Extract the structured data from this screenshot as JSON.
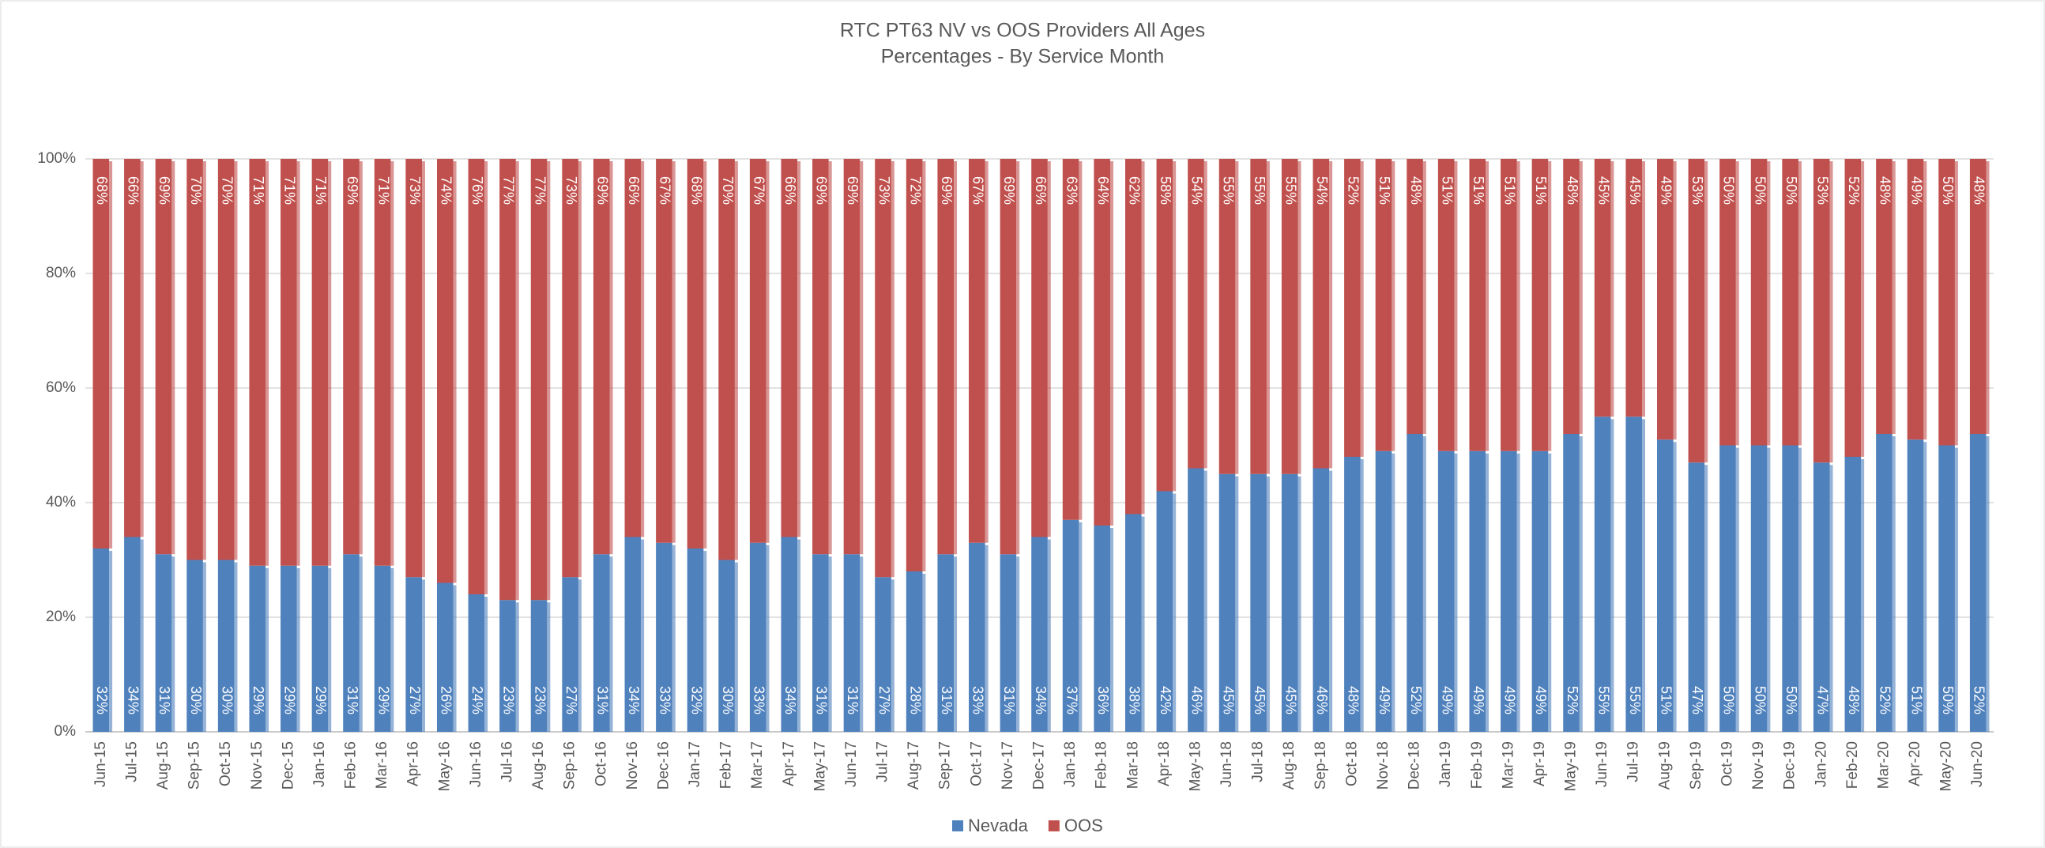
{
  "chart_data": {
    "type": "bar",
    "stacked": true,
    "title": "RTC PT63 NV vs OOS Providers All Ages",
    "subtitle": "Percentages - By Service Month",
    "categories": [
      "Jun-15",
      "Jul-15",
      "Aug-15",
      "Sep-15",
      "Oct-15",
      "Nov-15",
      "Dec-15",
      "Jan-16",
      "Feb-16",
      "Mar-16",
      "Apr-16",
      "May-16",
      "Jun-16",
      "Jul-16",
      "Aug-16",
      "Sep-16",
      "Oct-16",
      "Nov-16",
      "Dec-16",
      "Jan-17",
      "Feb-17",
      "Mar-17",
      "Apr-17",
      "May-17",
      "Jun-17",
      "Jul-17",
      "Aug-17",
      "Sep-17",
      "Oct-17",
      "Nov-17",
      "Dec-17",
      "Jan-18",
      "Feb-18",
      "Mar-18",
      "Apr-18",
      "May-18",
      "Jun-18",
      "Jul-18",
      "Aug-18",
      "Sep-18",
      "Oct-18",
      "Nov-18",
      "Dec-18",
      "Jan-19",
      "Feb-19",
      "Mar-19",
      "Apr-19",
      "May-19",
      "Jun-19",
      "Jul-19",
      "Aug-19",
      "Sep-19",
      "Oct-19",
      "Nov-19",
      "Dec-19",
      "Jan-20",
      "Feb-20",
      "Mar-20",
      "Apr-20",
      "May-20",
      "Jun-20"
    ],
    "series": [
      {
        "name": "Nevada",
        "color": "#4f81bd",
        "values": [
          32,
          34,
          31,
          30,
          30,
          29,
          29,
          29,
          31,
          29,
          27,
          26,
          24,
          23,
          23,
          27,
          31,
          34,
          33,
          32,
          30,
          33,
          34,
          31,
          31,
          27,
          28,
          31,
          33,
          31,
          34,
          37,
          36,
          38,
          42,
          46,
          45,
          45,
          45,
          46,
          48,
          49,
          52,
          49,
          49,
          49,
          49,
          52,
          55,
          55,
          51,
          47,
          50,
          50,
          50,
          47,
          48,
          52,
          51,
          50,
          52
        ],
        "value_labels": [
          "32%",
          "34%",
          "31%",
          "30%",
          "30%",
          "29%",
          "29%",
          "29%",
          "31%",
          "29%",
          "27%",
          "26%",
          "24%",
          "23%",
          "23%",
          "27%",
          "31%",
          "34%",
          "33%",
          "32%",
          "30%",
          "33%",
          "34%",
          "31%",
          "31%",
          "27%",
          "28%",
          "31%",
          "33%",
          "31%",
          "34%",
          "37%",
          "36%",
          "38%",
          "42%",
          "46%",
          "45%",
          "45%",
          "45%",
          "46%",
          "48%",
          "49%",
          "52%",
          "49%",
          "49%",
          "49%",
          "49%",
          "52%",
          "55%",
          "55%",
          "51%",
          "47%",
          "50%",
          "50%",
          "50%",
          "47%",
          "48%",
          "52%",
          "51%",
          "50%",
          "52%"
        ]
      },
      {
        "name": "OOS",
        "color": "#c0504d",
        "values": [
          68,
          66,
          69,
          70,
          70,
          71,
          71,
          71,
          69,
          71,
          73,
          74,
          76,
          77,
          77,
          73,
          69,
          66,
          67,
          68,
          70,
          67,
          66,
          69,
          69,
          73,
          72,
          69,
          67,
          69,
          66,
          63,
          64,
          62,
          58,
          54,
          55,
          55,
          55,
          54,
          52,
          51,
          48,
          51,
          51,
          51,
          51,
          48,
          45,
          45,
          49,
          53,
          50,
          50,
          50,
          53,
          52,
          48,
          49,
          50,
          48
        ],
        "value_labels": [
          "68%",
          "66%",
          "69%",
          "70%",
          "70%",
          "71%",
          "71%",
          "71%",
          "69%",
          "71%",
          "73%",
          "74%",
          "76%",
          "77%",
          "77%",
          "73%",
          "69%",
          "66%",
          "67%",
          "68%",
          "70%",
          "67%",
          "66%",
          "69%",
          "69%",
          "73%",
          "72%",
          "69%",
          "67%",
          "69%",
          "66%",
          "63%",
          "64%",
          "62%",
          "58%",
          "54%",
          "55%",
          "55%",
          "55%",
          "54%",
          "52%",
          "51%",
          "48%",
          "51%",
          "51%",
          "51%",
          "51%",
          "48%",
          "45%",
          "45%",
          "49%",
          "53%",
          "50%",
          "50%",
          "50%",
          "53%",
          "52%",
          "48%",
          "49%",
          "50%",
          "48%"
        ]
      }
    ],
    "ylim": [
      0,
      100
    ],
    "yticks": [
      {
        "value": 0,
        "label": "0%"
      },
      {
        "value": 20,
        "label": "20%"
      },
      {
        "value": 40,
        "label": "40%"
      },
      {
        "value": 60,
        "label": "60%"
      },
      {
        "value": 80,
        "label": "80%"
      },
      {
        "value": 100,
        "label": "100%"
      }
    ],
    "grid": true,
    "legend": "bottom"
  }
}
